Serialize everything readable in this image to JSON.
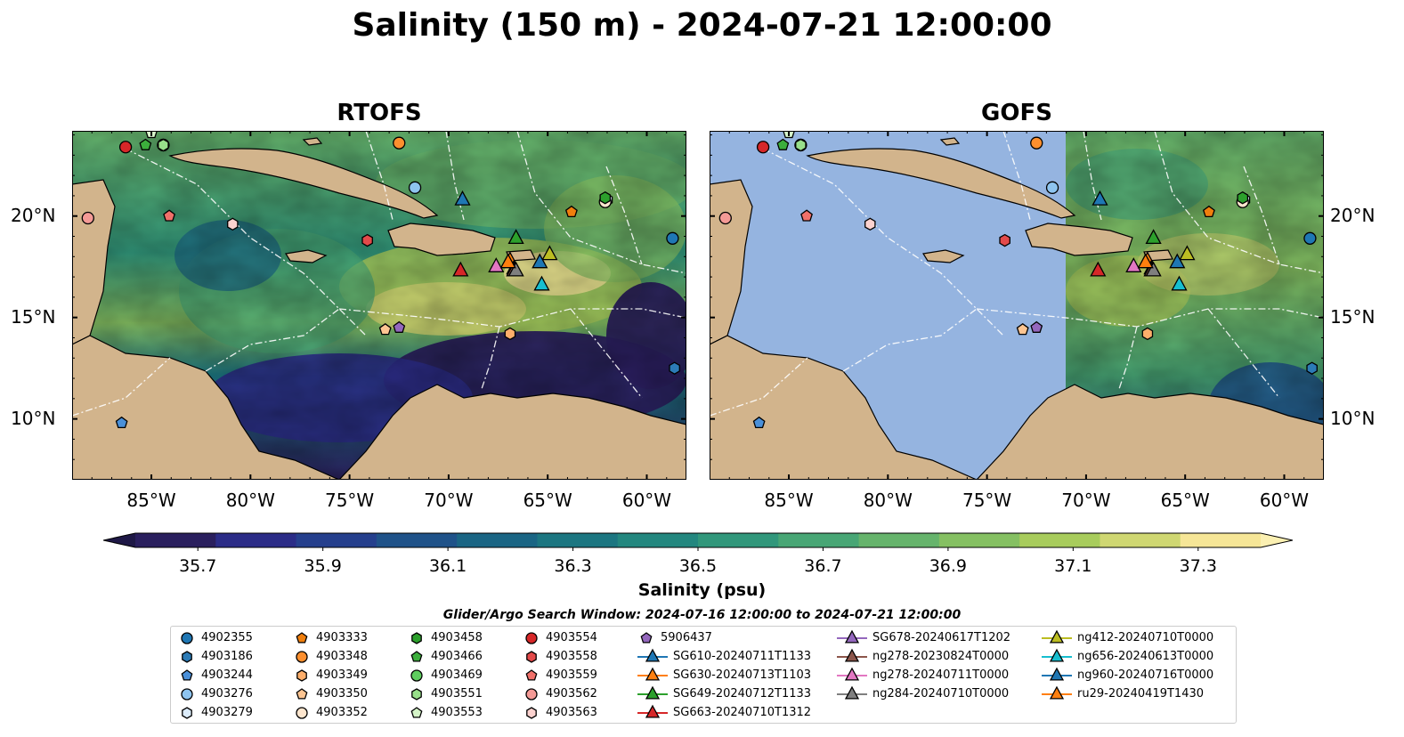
{
  "figure": {
    "title": "Salinity (150 m) - 2024-07-21 12:00:00",
    "panels": [
      {
        "title": "RTOFS"
      },
      {
        "title": "GOFS"
      }
    ],
    "lon_ticks": [
      "85°W",
      "80°W",
      "75°W",
      "70°W",
      "65°W",
      "60°W"
    ],
    "lat_ticks": [
      "20°N",
      "15°N",
      "10°N"
    ],
    "colorbar": {
      "label": "Salinity (psu)",
      "ticks": [
        "35.7",
        "35.9",
        "36.1",
        "36.3",
        "36.5",
        "36.7",
        "36.9",
        "37.1",
        "37.3"
      ],
      "min": 35.6,
      "max": 37.4,
      "colors": [
        "#2a1f5e",
        "#2b2c87",
        "#253f8d",
        "#1f5289",
        "#1a6584",
        "#1c7681",
        "#23877f",
        "#31977b",
        "#48a675",
        "#66b46c",
        "#85c062",
        "#a8cc5c",
        "#cfd772",
        "#f6e697"
      ]
    },
    "search_window": "Glider/Argo Search Window: 2024-07-16 12:00:00 to 2024-07-21 12:00:00"
  },
  "chart_data": {
    "type": "map",
    "extent": {
      "lon": [
        -89,
        -58
      ],
      "lat": [
        7,
        24.2
      ]
    },
    "variable": "salinity",
    "depth": "150 m",
    "units": "psu",
    "argo_floats": [
      {
        "id": "4902355",
        "lon": -58.7,
        "lat": 18.9
      },
      {
        "id": "4903186",
        "lon": -58.6,
        "lat": 12.5
      },
      {
        "id": "4903244",
        "lon": -86.5,
        "lat": 9.8
      },
      {
        "id": "4903276",
        "lon": -71.7,
        "lat": 21.4
      },
      {
        "id": "4903279",
        "lon": -62.0,
        "lat": 20.8
      },
      {
        "id": "4903333",
        "lon": -63.8,
        "lat": 20.2
      },
      {
        "id": "4903348",
        "lon": -72.5,
        "lat": 23.6
      },
      {
        "id": "4903349",
        "lon": -66.9,
        "lat": 14.2
      },
      {
        "id": "4903350",
        "lon": -73.2,
        "lat": 14.4
      },
      {
        "id": "4903352",
        "lon": -62.1,
        "lat": 20.7
      },
      {
        "id": "4903458",
        "lon": -62.1,
        "lat": 20.9
      },
      {
        "id": "4903466",
        "lon": -85.3,
        "lat": 23.5
      },
      {
        "id": "4903469",
        "lon": -84.4,
        "lat": 23.5
      },
      {
        "id": "4903551",
        "lon": -84.4,
        "lat": 23.5
      },
      {
        "id": "4903553",
        "lon": -85.0,
        "lat": 24.1
      },
      {
        "id": "4903554",
        "lon": -86.3,
        "lat": 23.4
      },
      {
        "id": "4903558",
        "lon": -74.1,
        "lat": 18.8
      },
      {
        "id": "4903559",
        "lon": -84.1,
        "lat": 20.0
      },
      {
        "id": "4903562",
        "lon": -88.2,
        "lat": 19.9
      },
      {
        "id": "4903563",
        "lon": -80.9,
        "lat": 19.6
      },
      {
        "id": "5906437",
        "lon": -72.5,
        "lat": 14.5
      }
    ],
    "gliders": [
      {
        "id": "SG610-20240711T1133",
        "lon": -69.3,
        "lat": 20.8
      },
      {
        "id": "SG630-20240713T1103",
        "lon": -66.9,
        "lat": 17.8
      },
      {
        "id": "SG649-20240712T1133",
        "lon": -66.6,
        "lat": 18.9
      },
      {
        "id": "SG663-20240710T1312",
        "lon": -69.4,
        "lat": 17.3
      },
      {
        "id": "SG678-20240617T1202",
        "lon": -66.7,
        "lat": 17.4
      },
      {
        "id": "ng278-20230824T0000",
        "lon": -66.7,
        "lat": 17.3
      },
      {
        "id": "ng278-20240711T0000",
        "lon": -67.6,
        "lat": 17.5
      },
      {
        "id": "ng284-20240710T0000",
        "lon": -66.6,
        "lat": 17.3
      },
      {
        "id": "ng412-20240710T0000",
        "lon": -64.9,
        "lat": 18.1
      },
      {
        "id": "ng656-20240613T0000",
        "lon": -65.3,
        "lat": 16.6
      },
      {
        "id": "ng960-20240716T0000",
        "lon": -65.4,
        "lat": 17.7
      },
      {
        "id": "ru29-20240419T1430",
        "lon": -67.0,
        "lat": 17.7
      }
    ]
  },
  "legend": {
    "items": [
      {
        "label": "4902355",
        "marker": "circle",
        "color": "#1f77b4"
      },
      {
        "label": "4903186",
        "marker": "hexagon",
        "color": "#2c7bb6"
      },
      {
        "label": "4903244",
        "marker": "pentagon",
        "color": "#4a90d9"
      },
      {
        "label": "4903276",
        "marker": "circle",
        "color": "#8ec4ef"
      },
      {
        "label": "4903279",
        "marker": "hexagon",
        "color": "#dcecfb"
      },
      {
        "label": "4903333",
        "marker": "pentagon",
        "color": "#f07f0d"
      },
      {
        "label": "4903348",
        "marker": "circle",
        "color": "#fd8f2e"
      },
      {
        "label": "4903349",
        "marker": "hexagon",
        "color": "#fdae6b"
      },
      {
        "label": "4903350",
        "marker": "pentagon",
        "color": "#fdc592"
      },
      {
        "label": "4903352",
        "marker": "circle",
        "color": "#fee6ce"
      },
      {
        "label": "4903458",
        "marker": "hexagon",
        "color": "#2ca02c"
      },
      {
        "label": "4903466",
        "marker": "pentagon",
        "color": "#3cae3c"
      },
      {
        "label": "4903469",
        "marker": "circle",
        "color": "#5fcd5f"
      },
      {
        "label": "4903551",
        "marker": "hexagon",
        "color": "#98df8a"
      },
      {
        "label": "4903553",
        "marker": "pentagon",
        "color": "#d6f5c9"
      },
      {
        "label": "4903554",
        "marker": "circle",
        "color": "#d62728"
      },
      {
        "label": "4903558",
        "marker": "hexagon",
        "color": "#e34a4a"
      },
      {
        "label": "4903559",
        "marker": "pentagon",
        "color": "#f0706a"
      },
      {
        "label": "4903562",
        "marker": "circle",
        "color": "#f49a96"
      },
      {
        "label": "4903563",
        "marker": "hexagon",
        "color": "#fcd2cf"
      },
      {
        "label": "5906437",
        "marker": "pentagon",
        "color": "#9467bd"
      },
      {
        "label": "SG610-20240711T1133",
        "marker": "triangle",
        "color": "#1f77b4"
      },
      {
        "label": "SG630-20240713T1103",
        "marker": "triangle",
        "color": "#ff7f0e"
      },
      {
        "label": "SG649-20240712T1133",
        "marker": "triangle",
        "color": "#2ca02c"
      },
      {
        "label": "SG663-20240710T1312",
        "marker": "triangle",
        "color": "#d62728"
      },
      {
        "label": "SG678-20240617T1202",
        "marker": "triangle",
        "color": "#9467bd"
      },
      {
        "label": "ng278-20230824T0000",
        "marker": "triangle",
        "color": "#8c564b"
      },
      {
        "label": "ng278-20240711T0000",
        "marker": "triangle",
        "color": "#e377c2"
      },
      {
        "label": "ng284-20240710T0000",
        "marker": "triangle",
        "color": "#7f7f7f"
      },
      {
        "label": "ng412-20240710T0000",
        "marker": "triangle",
        "color": "#bcbd22"
      },
      {
        "label": "ng656-20240613T0000",
        "marker": "triangle",
        "color": "#17becf"
      },
      {
        "label": "ng960-20240716T0000",
        "marker": "triangle",
        "color": "#1f77b4"
      },
      {
        "label": "ru29-20240419T1430",
        "marker": "triangle",
        "color": "#ff7f0e"
      }
    ]
  }
}
